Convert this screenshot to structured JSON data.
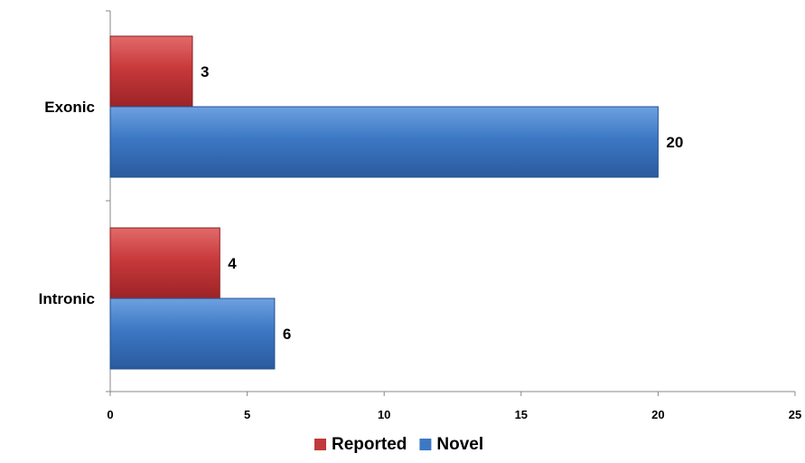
{
  "chart_data": {
    "type": "bar",
    "orientation": "horizontal",
    "categories": [
      "Exonic",
      "Intronic"
    ],
    "series": [
      {
        "name": "Reported",
        "values": [
          3,
          4
        ],
        "color": "#c0393b"
      },
      {
        "name": "Novel",
        "values": [
          20,
          6
        ],
        "color": "#3d78c4"
      }
    ],
    "x_ticks": [
      "0",
      "5",
      "10",
      "15",
      "20",
      "25"
    ],
    "xlim": [
      0,
      25
    ],
    "grid": false,
    "legend_position": "bottom",
    "data_labels": true
  }
}
